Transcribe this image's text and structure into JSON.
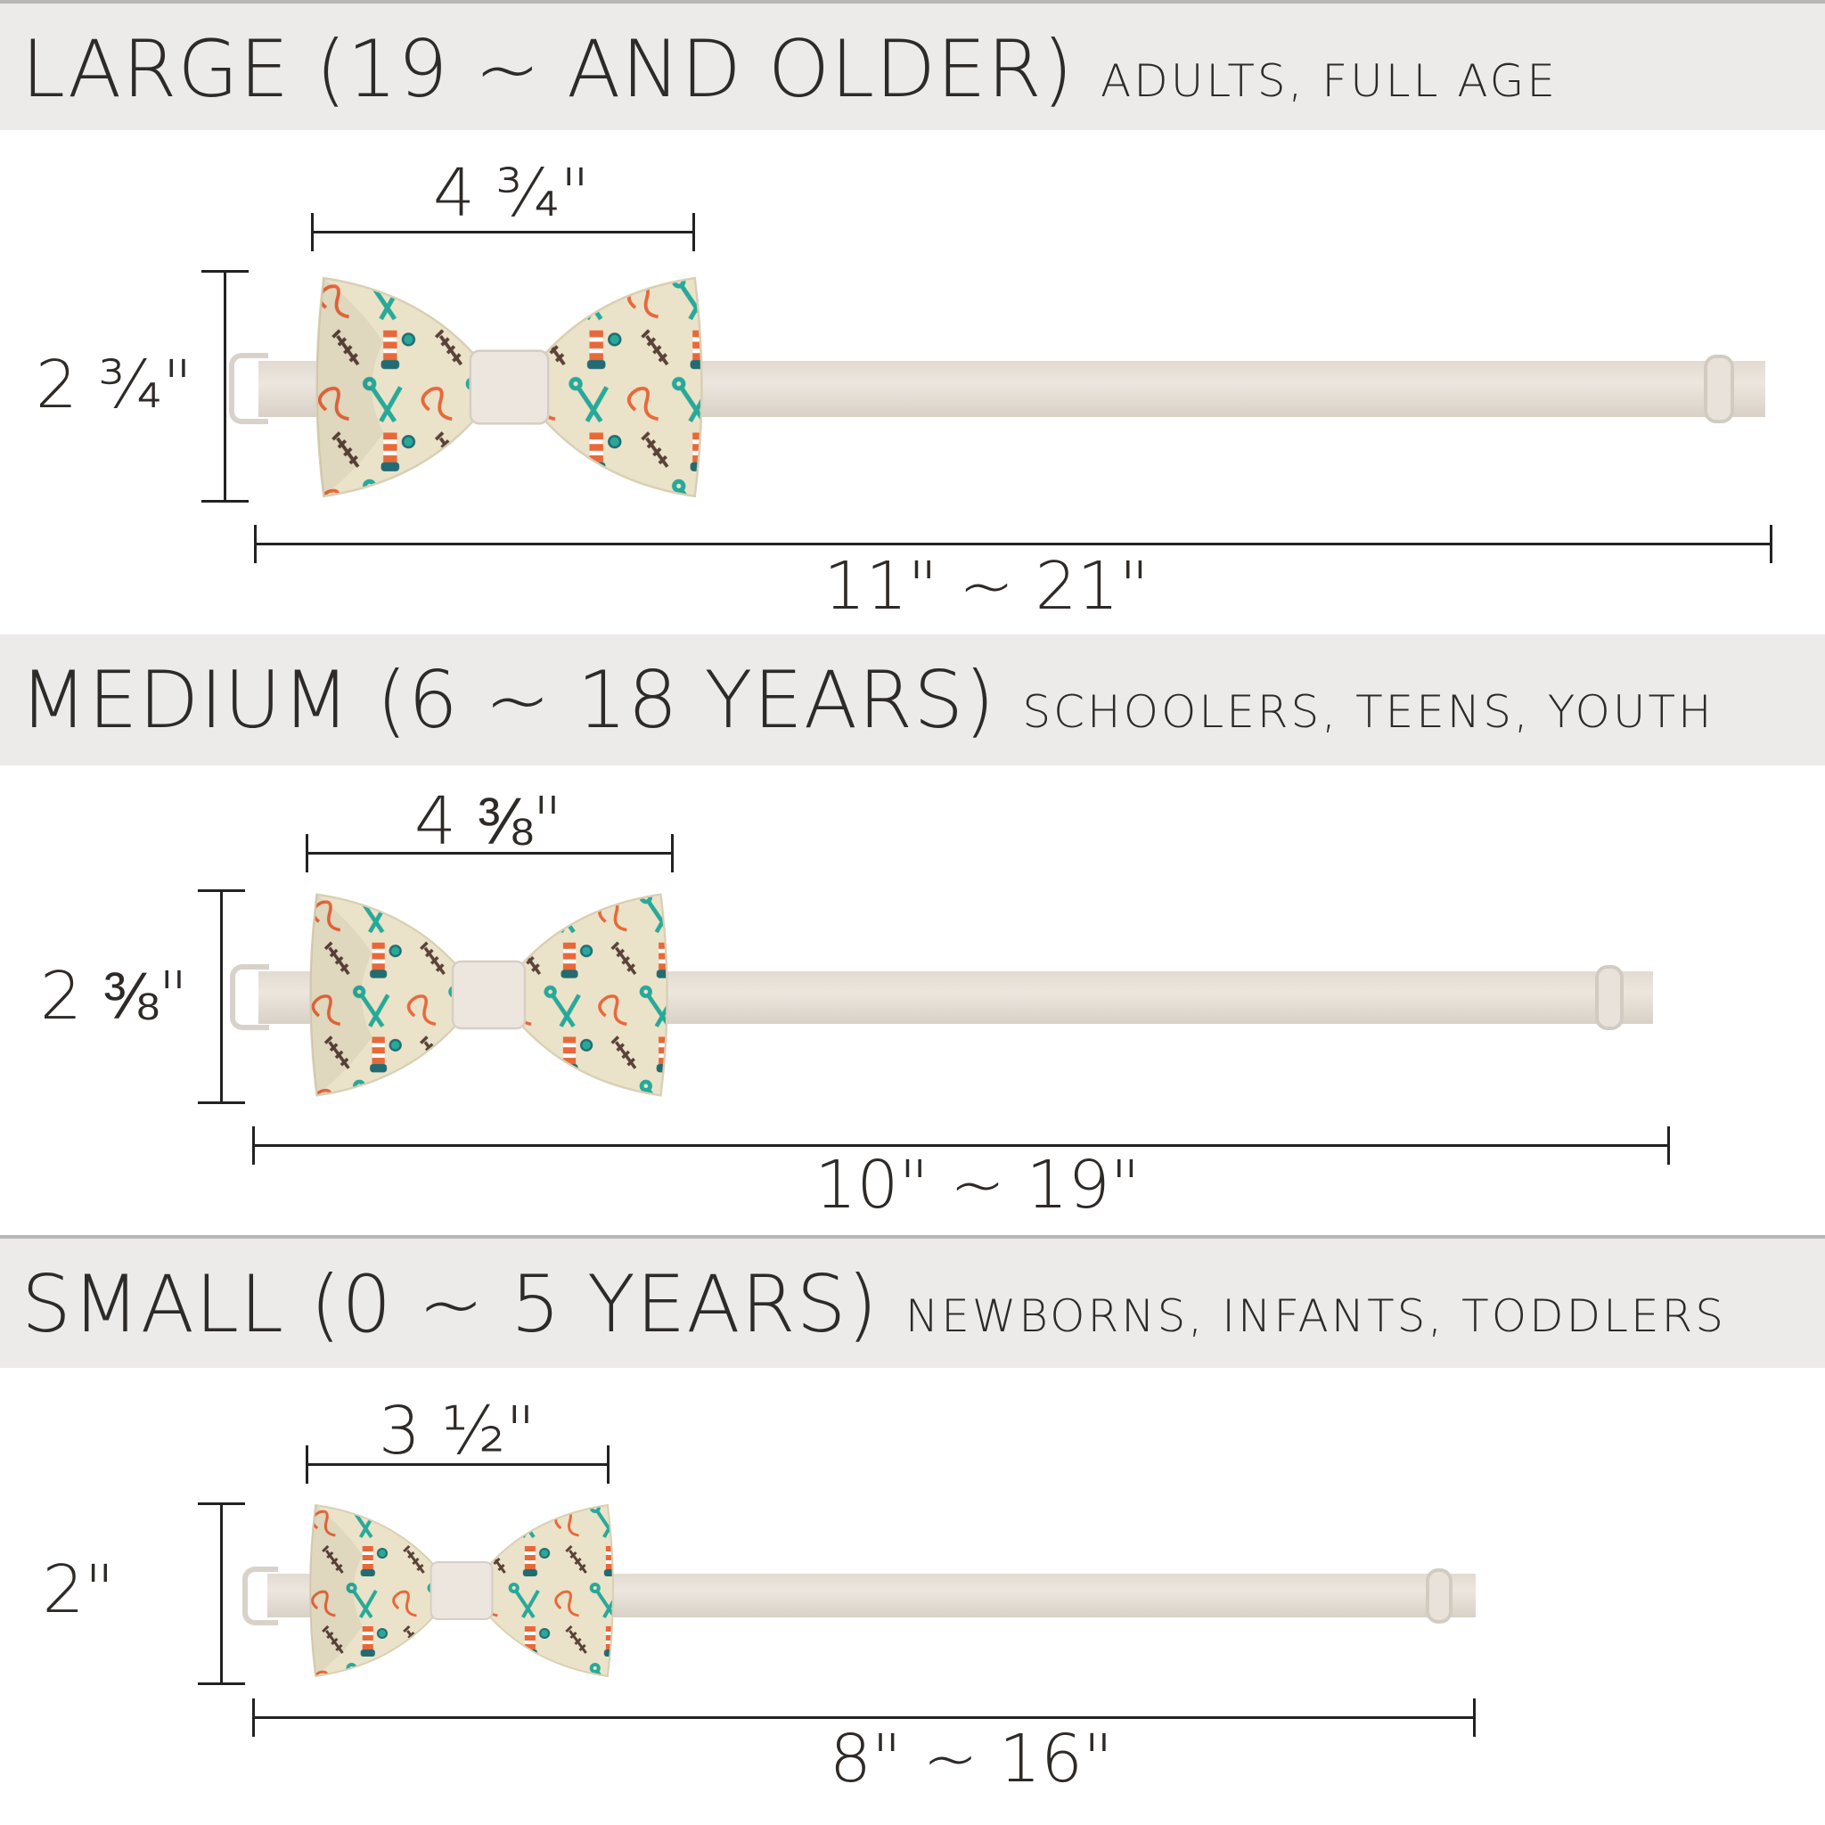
{
  "colors": {
    "band": "#ecebea",
    "fabric": "#ebe3c9",
    "orange": "#e8683a",
    "teal": "#27a99a",
    "petrol": "#236b72",
    "brown": "#5a4238",
    "strap": "#e6dfd6"
  },
  "sizes": [
    {
      "title": "LARGE (19 ~ AND OLDER)",
      "subtitle": "ADULTS, FULL AGE",
      "width": "4 ¾\"",
      "height": "2 ¾\"",
      "length": "11\" ~ 21\""
    },
    {
      "title": "MEDIUM (6 ~ 18 YEARS)",
      "subtitle": "SCHOOLERS, TEENS, YOUTH",
      "width": "4 ⅜\"",
      "height": "2 ⅜\"",
      "length": "10\" ~ 19\""
    },
    {
      "title": "SMALL (0 ~ 5 YEARS)",
      "subtitle": "NEWBORNS, INFANTS, TODDLERS",
      "width": "3 ½\"",
      "height": "2\"",
      "length": "8\" ~ 16\""
    }
  ]
}
